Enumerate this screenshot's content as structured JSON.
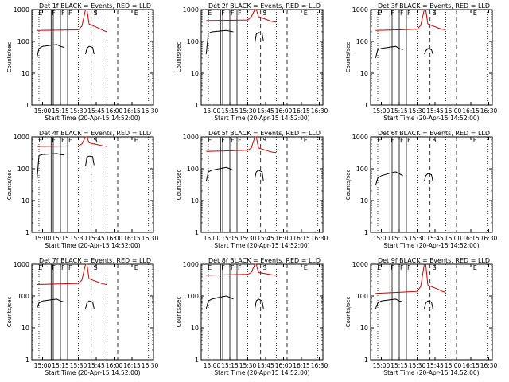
{
  "figure": {
    "ylabel": "Counts/sec",
    "xlabel": "Start Time (20-Apr-15 14:52:00)",
    "series_colors": {
      "events": "#000000",
      "lld": "#cc0000"
    },
    "marker_labels": {
      "E": "E",
      "F": "F",
      "S": "S"
    }
  },
  "chart_data": [
    {
      "type": "line",
      "title": "Det 1f BLACK = Events, RED = LLD",
      "ylim": [
        1,
        1000
      ],
      "x_ticks": [
        "15:00",
        "15:15",
        "15:30",
        "15:45",
        "16:00",
        "16:15",
        "16:30"
      ],
      "y_ticks": [
        "1",
        "10",
        "100",
        "1000"
      ],
      "series": [
        {
          "name": "RED = LLD",
          "x": [
            14.92,
            15.5,
            15.55,
            15.6,
            15.62,
            15.65,
            15.8,
            15.85,
            15.9
          ],
          "y": [
            220,
            230,
            300,
            1000,
            1000,
            350,
            250,
            220,
            200
          ],
          "gaps": [
            [
              15.62,
              15.6
            ]
          ]
        },
        {
          "name": "BLACK = Events",
          "x": [
            14.92,
            14.95,
            15.0,
            15.1,
            15.2,
            15.25,
            15.3,
            15.6,
            15.62,
            15.65,
            15.7,
            15.72
          ],
          "y": [
            30,
            60,
            70,
            75,
            80,
            70,
            65,
            40,
            60,
            70,
            65,
            40
          ]
        }
      ]
    },
    {
      "type": "line",
      "title": "Det 2f BLACK = Events, RED = LLD",
      "ylim": [
        1,
        1000
      ],
      "x_ticks": [
        "15:00",
        "15:15",
        "15:30",
        "15:45",
        "16:00",
        "16:15",
        "16:30"
      ],
      "y_ticks": [
        "1",
        "10",
        "100",
        "1000"
      ],
      "series": [
        {
          "name": "RED = LLD",
          "x": [
            14.92,
            15.5,
            15.55,
            15.6,
            15.62,
            15.65,
            15.8,
            15.85,
            15.9
          ],
          "y": [
            450,
            470,
            600,
            1000,
            1000,
            600,
            450,
            420,
            400
          ]
        },
        {
          "name": "BLACK = Events",
          "x": [
            14.92,
            14.95,
            15.0,
            15.1,
            15.2,
            15.25,
            15.3,
            15.6,
            15.62,
            15.65,
            15.7,
            15.72
          ],
          "y": [
            40,
            180,
            200,
            210,
            220,
            210,
            200,
            90,
            170,
            190,
            180,
            100
          ]
        }
      ]
    },
    {
      "type": "line",
      "title": "Det 3f BLACK = Events, RED = LLD",
      "ylim": [
        1,
        1000
      ],
      "x_ticks": [
        "15:00",
        "15:15",
        "15:30",
        "15:45",
        "16:00",
        "16:15",
        "16:30"
      ],
      "y_ticks": [
        "1",
        "10",
        "100",
        "1000"
      ],
      "series": [
        {
          "name": "RED = LLD",
          "x": [
            14.92,
            15.5,
            15.55,
            15.6,
            15.62,
            15.65,
            15.8,
            15.85,
            15.9
          ],
          "y": [
            220,
            240,
            320,
            1000,
            1000,
            350,
            260,
            240,
            230
          ]
        },
        {
          "name": "BLACK = Events",
          "x": [
            14.92,
            14.95,
            15.0,
            15.1,
            15.2,
            15.25,
            15.3,
            15.6,
            15.62,
            15.65,
            15.7,
            15.72
          ],
          "y": [
            30,
            55,
            60,
            65,
            70,
            60,
            55,
            40,
            50,
            60,
            55,
            40
          ]
        }
      ]
    },
    {
      "type": "line",
      "title": "Det 4f BLACK = Events, RED = LLD",
      "ylim": [
        1,
        1000
      ],
      "x_ticks": [
        "15:00",
        "15:15",
        "15:30",
        "15:45",
        "16:00",
        "16:15",
        "16:30"
      ],
      "y_ticks": [
        "1",
        "10",
        "100",
        "1000"
      ],
      "series": [
        {
          "name": "RED = LLD",
          "x": [
            14.92,
            15.5,
            15.55,
            15.6,
            15.62,
            15.65,
            15.8,
            15.85,
            15.9
          ],
          "y": [
            500,
            520,
            600,
            1000,
            1000,
            650,
            550,
            520,
            500
          ]
        },
        {
          "name": "BLACK = Events",
          "x": [
            14.92,
            14.95,
            15.0,
            15.1,
            15.2,
            15.25,
            15.3,
            15.6,
            15.62,
            15.65,
            15.7,
            15.72
          ],
          "y": [
            40,
            260,
            280,
            290,
            300,
            280,
            270,
            120,
            230,
            250,
            240,
            130
          ]
        }
      ]
    },
    {
      "type": "line",
      "title": "Det 5f BLACK = Events, RED = LLD",
      "ylim": [
        1,
        1000
      ],
      "x_ticks": [
        "15:00",
        "15:15",
        "15:30",
        "15:45",
        "16:00",
        "16:15",
        "16:30"
      ],
      "y_ticks": [
        "1",
        "10",
        "100",
        "1000"
      ],
      "series": [
        {
          "name": "RED = LLD",
          "x": [
            14.92,
            15.5,
            15.55,
            15.6,
            15.62,
            15.65,
            15.8,
            15.85,
            15.9
          ],
          "y": [
            350,
            380,
            450,
            1000,
            1000,
            450,
            350,
            330,
            320
          ]
        },
        {
          "name": "BLACK = Events",
          "x": [
            14.92,
            14.95,
            15.0,
            15.1,
            15.2,
            15.25,
            15.3,
            15.6,
            15.62,
            15.65,
            15.7,
            15.72
          ],
          "y": [
            40,
            80,
            90,
            100,
            110,
            100,
            90,
            50,
            80,
            90,
            80,
            40
          ]
        }
      ]
    },
    {
      "type": "line",
      "title": "Det 6f BLACK = Events, RED = LLD",
      "ylim": [
        1,
        1000
      ],
      "x_ticks": [
        "15:00",
        "15:15",
        "15:30",
        "15:45",
        "16:00",
        "16:15",
        "16:30"
      ],
      "y_ticks": [
        "1",
        "10",
        "100",
        "1000"
      ],
      "series": [
        {
          "name": "BLACK = Events",
          "x": [
            14.92,
            14.95,
            15.0,
            15.1,
            15.2,
            15.25,
            15.3,
            15.6,
            15.62,
            15.65,
            15.7,
            15.72
          ],
          "y": [
            30,
            50,
            60,
            70,
            80,
            70,
            60,
            40,
            60,
            70,
            65,
            40
          ]
        }
      ]
    },
    {
      "type": "line",
      "title": "Det 7f BLACK = Events, RED = LLD",
      "ylim": [
        1,
        1000
      ],
      "x_ticks": [
        "15:00",
        "15:15",
        "15:30",
        "15:45",
        "16:00",
        "16:15",
        "16:30"
      ],
      "y_ticks": [
        "1",
        "10",
        "100",
        "1000"
      ],
      "series": [
        {
          "name": "RED = LLD",
          "x": [
            14.92,
            15.5,
            15.55,
            15.6,
            15.62,
            15.65,
            15.8,
            15.85,
            15.9
          ],
          "y": [
            230,
            250,
            320,
            1000,
            1000,
            350,
            260,
            240,
            230
          ]
        },
        {
          "name": "BLACK = Events",
          "x": [
            14.92,
            14.95,
            15.0,
            15.1,
            15.2,
            15.25,
            15.3,
            15.6,
            15.62,
            15.65,
            15.7,
            15.72
          ],
          "y": [
            40,
            60,
            70,
            75,
            80,
            70,
            65,
            40,
            60,
            70,
            65,
            40
          ]
        }
      ]
    },
    {
      "type": "line",
      "title": "Det 8f BLACK = Events, RED = LLD",
      "ylim": [
        1,
        1000
      ],
      "x_ticks": [
        "15:00",
        "15:15",
        "15:30",
        "15:45",
        "16:00",
        "16:15",
        "16:30"
      ],
      "y_ticks": [
        "1",
        "10",
        "100",
        "1000"
      ],
      "series": [
        {
          "name": "RED = LLD",
          "x": [
            14.92,
            15.5,
            15.55,
            15.6,
            15.62,
            15.65,
            15.8,
            15.85,
            15.9
          ],
          "y": [
            450,
            480,
            550,
            1000,
            1000,
            550,
            480,
            460,
            450
          ]
        },
        {
          "name": "BLACK = Events",
          "x": [
            14.92,
            14.95,
            15.0,
            15.1,
            15.2,
            15.25,
            15.3,
            15.6,
            15.62,
            15.65,
            15.7,
            15.72
          ],
          "y": [
            40,
            70,
            80,
            90,
            100,
            90,
            80,
            40,
            70,
            80,
            70,
            40
          ]
        }
      ]
    },
    {
      "type": "line",
      "title": "Det 9f BLACK = Events, RED = LLD",
      "ylim": [
        1,
        1000
      ],
      "x_ticks": [
        "15:00",
        "15:15",
        "15:30",
        "15:45",
        "16:00",
        "16:15",
        "16:30"
      ],
      "y_ticks": [
        "1",
        "10",
        "100",
        "1000"
      ],
      "series": [
        {
          "name": "RED = LLD",
          "x": [
            14.92,
            15.5,
            15.55,
            15.6,
            15.62,
            15.65,
            15.8,
            15.85,
            15.9
          ],
          "y": [
            120,
            140,
            200,
            1000,
            1000,
            220,
            160,
            140,
            130
          ]
        },
        {
          "name": "BLACK = Events",
          "x": [
            14.92,
            14.95,
            15.0,
            15.1,
            15.2,
            15.25,
            15.3,
            15.6,
            15.62,
            15.65,
            15.7,
            15.72
          ],
          "y": [
            40,
            60,
            70,
            75,
            80,
            70,
            65,
            40,
            60,
            70,
            65,
            40
          ]
        }
      ]
    }
  ]
}
